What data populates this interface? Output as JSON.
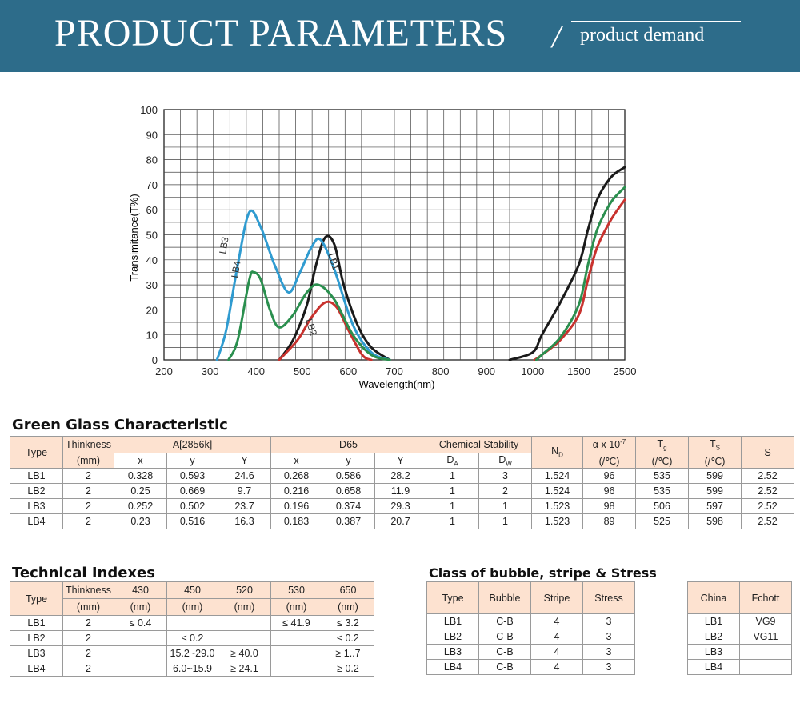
{
  "banner": {
    "title": "PRODUCT PARAMETERS",
    "slash": "/",
    "subtitle": "product demand"
  },
  "chart_data": {
    "type": "line",
    "ylabel": "Transimitance(T%)",
    "xlabel": "Wavelength(nm)",
    "ylim": [
      0,
      100
    ],
    "y_ticks": [
      "0",
      "10",
      "20",
      "30",
      "40",
      "50",
      "60",
      "70",
      "80",
      "90",
      "100"
    ],
    "x_ticks": [
      "200",
      "300",
      "400",
      "500",
      "600",
      "700",
      "800",
      "900",
      "1000",
      "1500",
      "2500"
    ],
    "grid": true,
    "series": [
      {
        "name": "LB1",
        "color": "#1a1a1a",
        "points": [
          [
            450,
            0
          ],
          [
            480,
            8
          ],
          [
            510,
            22
          ],
          [
            530,
            38
          ],
          [
            550,
            49
          ],
          [
            570,
            46
          ],
          [
            590,
            30
          ],
          [
            620,
            14
          ],
          [
            650,
            5
          ],
          [
            690,
            0
          ],
          [
            950,
            0
          ],
          [
            1000,
            3
          ],
          [
            1100,
            10
          ],
          [
            1300,
            23
          ],
          [
            1500,
            38
          ],
          [
            1700,
            52
          ],
          [
            1900,
            64
          ],
          [
            2200,
            73
          ],
          [
            2500,
            77
          ]
        ]
      },
      {
        "name": "LB2",
        "color": "#c8322e",
        "points": [
          [
            450,
            0
          ],
          [
            490,
            8
          ],
          [
            520,
            17
          ],
          [
            550,
            23
          ],
          [
            575,
            21
          ],
          [
            600,
            12
          ],
          [
            630,
            2
          ],
          [
            650,
            0
          ],
          [
            1020,
            0
          ],
          [
            1100,
            2
          ],
          [
            1300,
            8
          ],
          [
            1500,
            18
          ],
          [
            1700,
            32
          ],
          [
            1900,
            45
          ],
          [
            2200,
            56
          ],
          [
            2500,
            64
          ]
        ]
      },
      {
        "name": "LB3",
        "color": "#2f9bd0",
        "points": [
          [
            315,
            0
          ],
          [
            335,
            12
          ],
          [
            360,
            38
          ],
          [
            385,
            59
          ],
          [
            410,
            53
          ],
          [
            440,
            38
          ],
          [
            470,
            27
          ],
          [
            495,
            35
          ],
          [
            520,
            45
          ],
          [
            540,
            48
          ],
          [
            570,
            36
          ],
          [
            610,
            14
          ],
          [
            650,
            3
          ],
          [
            690,
            0
          ]
        ]
      },
      {
        "name": "LB4",
        "color": "#2a8f4e",
        "points": [
          [
            340,
            0
          ],
          [
            360,
            8
          ],
          [
            385,
            32
          ],
          [
            395,
            35
          ],
          [
            410,
            32
          ],
          [
            430,
            20
          ],
          [
            450,
            13
          ],
          [
            480,
            18
          ],
          [
            510,
            27
          ],
          [
            535,
            30
          ],
          [
            570,
            24
          ],
          [
            610,
            10
          ],
          [
            650,
            2
          ],
          [
            690,
            0
          ],
          [
            1040,
            0
          ],
          [
            1100,
            2
          ],
          [
            1300,
            9
          ],
          [
            1500,
            22
          ],
          [
            1700,
            38
          ],
          [
            1900,
            52
          ],
          [
            2200,
            63
          ],
          [
            2500,
            69
          ]
        ]
      }
    ],
    "labels": [
      "LB3",
      "LB4",
      "LB1",
      "LB2"
    ]
  },
  "green_glass": {
    "title": "Green Glass Characteristic",
    "h_type": "Type",
    "h_thick": "Thinkness",
    "h_mm": "(mm)",
    "h_a": "A[2856k]",
    "h_d65": "D65",
    "h_chem": "Chemical Stability",
    "h_nd": "N",
    "h_nd_sub": "D",
    "h_alpha": "α x 10",
    "h_alpha_sup": "-7",
    "h_alpha_unit": "(/℃)",
    "h_tg": "T",
    "h_tg_sub": "g",
    "h_tg_unit": "(/℃)",
    "h_ts": "T",
    "h_ts_sub": "S",
    "h_ts_unit": "(/℃)",
    "h_s": "S",
    "h_x": "x",
    "h_y": "y",
    "h_Y": "Y",
    "h_x2": "x",
    "h_y2": "y",
    "h_Y2": "Y",
    "h_da": "D",
    "h_da_sub": "A",
    "h_dw": "D",
    "h_dw_sub": "W",
    "rows": [
      [
        "LB1",
        "2",
        "0.328",
        "0.593",
        "24.6",
        "0.268",
        "0.586",
        "28.2",
        "1",
        "3",
        "1.524",
        "96",
        "535",
        "599",
        "2.52"
      ],
      [
        "LB2",
        "2",
        "0.25",
        "0.669",
        "9.7",
        "0.216",
        "0.658",
        "11.9",
        "1",
        "2",
        "1.524",
        "96",
        "535",
        "599",
        "2.52"
      ],
      [
        "LB3",
        "2",
        "0.252",
        "0.502",
        "23.7",
        "0.196",
        "0.374",
        "29.3",
        "1",
        "1",
        "1.523",
        "98",
        "506",
        "597",
        "2.52"
      ],
      [
        "LB4",
        "2",
        "0.23",
        "0.516",
        "16.3",
        "0.183",
        "0.387",
        "20.7",
        "1",
        "1",
        "1.523",
        "89",
        "525",
        "598",
        "2.52"
      ]
    ]
  },
  "technical": {
    "title": "Technical Indexes",
    "h_type": "Type",
    "h_thick": "Thinkness",
    "h_mm": "(mm)",
    "cols": [
      "430",
      "450",
      "520",
      "530",
      "650"
    ],
    "unit": "(nm)",
    "rows": [
      [
        "LB1",
        "2",
        "≤ 0.4",
        "",
        "",
        "≤ 41.9",
        "≤ 3.2"
      ],
      [
        "LB2",
        "2",
        "",
        "≤ 0.2",
        "",
        "",
        "≤ 0.2"
      ],
      [
        "LB3",
        "2",
        "",
        "15.2~29.0",
        "≥ 40.0",
        "",
        "≥ 1..7"
      ],
      [
        "LB4",
        "2",
        "",
        "6.0~15.9",
        "≥ 24.1",
        "",
        "≥ 0.2"
      ]
    ]
  },
  "bubble": {
    "title": "Class of bubble, stripe & Stress",
    "headers": [
      "Type",
      "Bubble",
      "Stripe",
      "Stress"
    ],
    "rows": [
      [
        "LB1",
        "C-B",
        "4",
        "3"
      ],
      [
        "LB2",
        "C-B",
        "4",
        "3"
      ],
      [
        "LB3",
        "C-B",
        "4",
        "3"
      ],
      [
        "LB4",
        "C-B",
        "4",
        "3"
      ]
    ]
  },
  "equiv": {
    "headers": [
      "China",
      "Fchott"
    ],
    "rows": [
      [
        "LB1",
        "VG9"
      ],
      [
        "LB2",
        "VG11"
      ],
      [
        "LB3",
        ""
      ],
      [
        "LB4",
        ""
      ]
    ]
  }
}
